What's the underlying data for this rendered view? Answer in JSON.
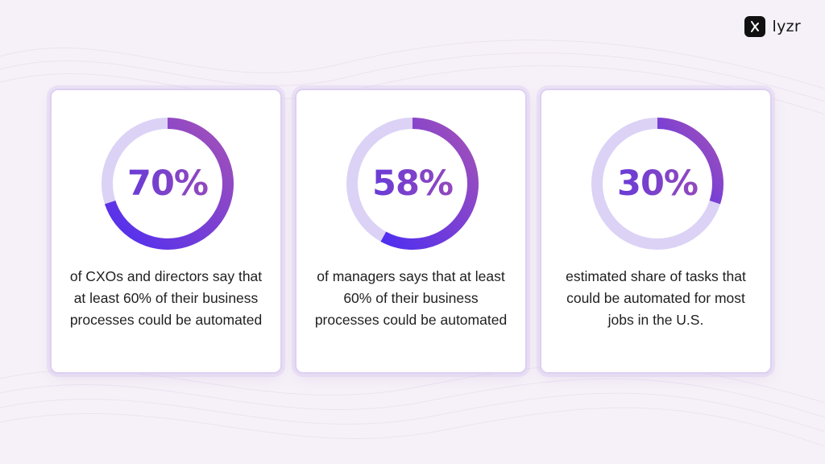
{
  "brand": {
    "name": "lyzr"
  },
  "colors": {
    "track": "#dcd2f6",
    "gradient_start": "#4f2ef0",
    "gradient_end": "#a552b6",
    "label_gradient_start": "#5a36e0",
    "label_gradient_end": "#a14eb4",
    "background": "#f6f1f8"
  },
  "chart_data": [
    {
      "type": "pie",
      "style": "donut",
      "value": 70,
      "label": "70%",
      "description": "of CXOs and directors say that at least 60% of their business processes could be automated"
    },
    {
      "type": "pie",
      "style": "donut",
      "value": 58,
      "label": "58%",
      "description": "of managers says that at least 60% of their business processes could be automated"
    },
    {
      "type": "pie",
      "style": "donut",
      "value": 30,
      "label": "30%",
      "description": "estimated share of tasks that could be automated for most jobs in the U.S."
    }
  ]
}
